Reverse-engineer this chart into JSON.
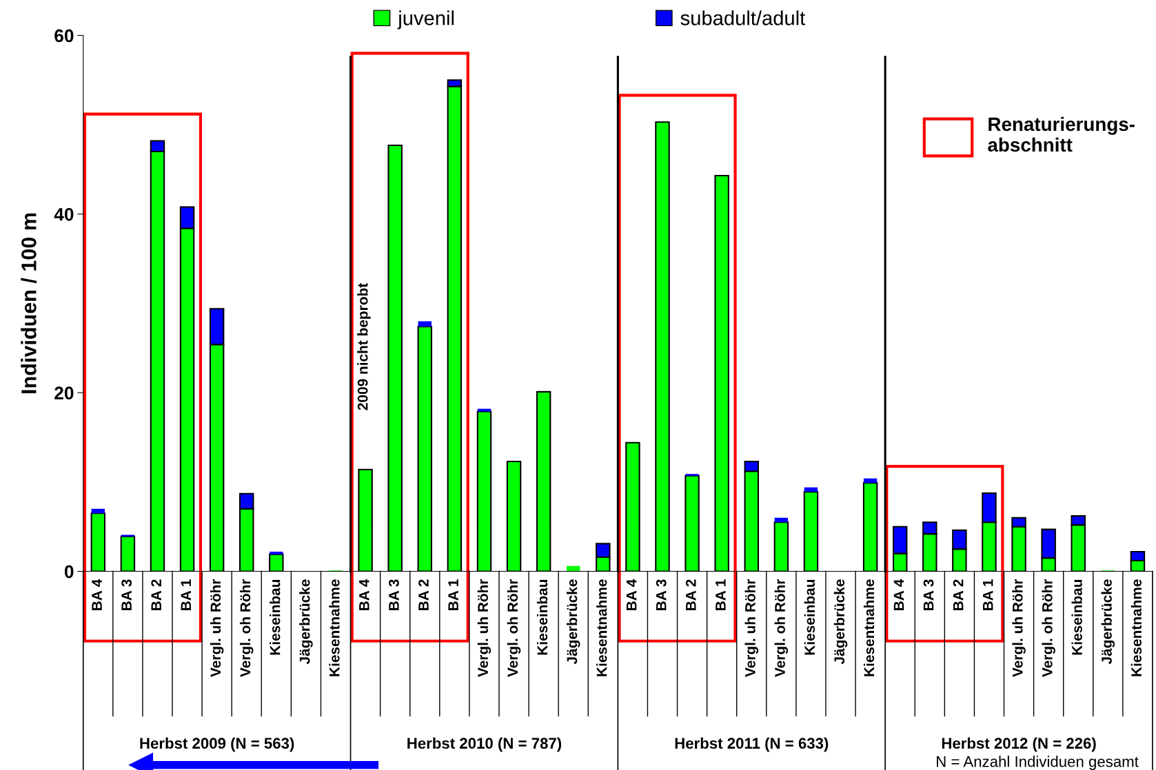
{
  "chart_data": {
    "type": "bar",
    "stacked": true,
    "ylabel": "Individuen / 100 m",
    "categories": [
      "BA 4",
      "BA 3",
      "BA 2",
      "BA 1",
      "Vergl. uh Röhr",
      "Vergl. oh Röhr",
      "Kieseinbau",
      "Jägerbrücke",
      "Kiesentnahme",
      "BA 4",
      "BA 3",
      "BA 2",
      "BA 1",
      "Vergl. uh Röhr",
      "Vergl. oh Röhr",
      "Kieseinbau",
      "Jägerbrücke",
      "Kiesentnahme",
      "BA 4",
      "BA 3",
      "BA 2",
      "BA 1",
      "Vergl. uh Röhr",
      "Vergl. oh Röhr",
      "Kieseinbau",
      "Jägerbrücke",
      "Kiesentnahme",
      "BA 4",
      "BA 3",
      "BA 2",
      "BA 1",
      "Vergl. uh Röhr",
      "Vergl. oh Röhr",
      "Kieseinbau",
      "Jägerbrücke",
      "Kiesentnahme"
    ],
    "series": [
      {
        "name": "juvenil",
        "color": "#00ff00",
        "values": [
          6.5,
          3.9,
          47.0,
          38.4,
          25.4,
          7.0,
          1.9,
          0,
          0.1,
          11.4,
          47.7,
          27.4,
          54.3,
          17.9,
          12.3,
          20.1,
          0.6,
          1.6,
          14.4,
          50.3,
          10.7,
          44.3,
          11.2,
          5.5,
          8.9,
          0,
          9.9,
          2.0,
          4.2,
          2.5,
          5.5,
          5.0,
          1.5,
          5.2,
          0.1,
          1.2
        ]
      },
      {
        "name": "subadult/adult",
        "color": "#0000ff",
        "values": [
          0.5,
          0.2,
          1.2,
          2.4,
          4.0,
          1.7,
          0.3,
          0,
          0,
          0,
          0,
          0.6,
          0.7,
          0.3,
          0,
          0,
          0,
          1.5,
          0,
          0,
          0.2,
          0,
          1.1,
          0.5,
          0.5,
          0,
          0.5,
          3.0,
          1.3,
          2.1,
          3.25,
          1.0,
          3.2,
          1.0,
          0,
          1.0
        ]
      }
    ],
    "ylim": [
      0,
      60
    ],
    "yticks": [
      0,
      20,
      40,
      60
    ],
    "grid": false,
    "legend": "top",
    "annotations": [
      "Herbst 2009 (N = 563)",
      "Herbst 2010 (N = 787)",
      "Herbst 2011 (N = 633)",
      "Herbst 2012 (N = 226)",
      "2009 nicht beprobt",
      "N = Anzahl Individuen gesamt",
      "Renaturierungs-\nabschnitt"
    ]
  }
}
